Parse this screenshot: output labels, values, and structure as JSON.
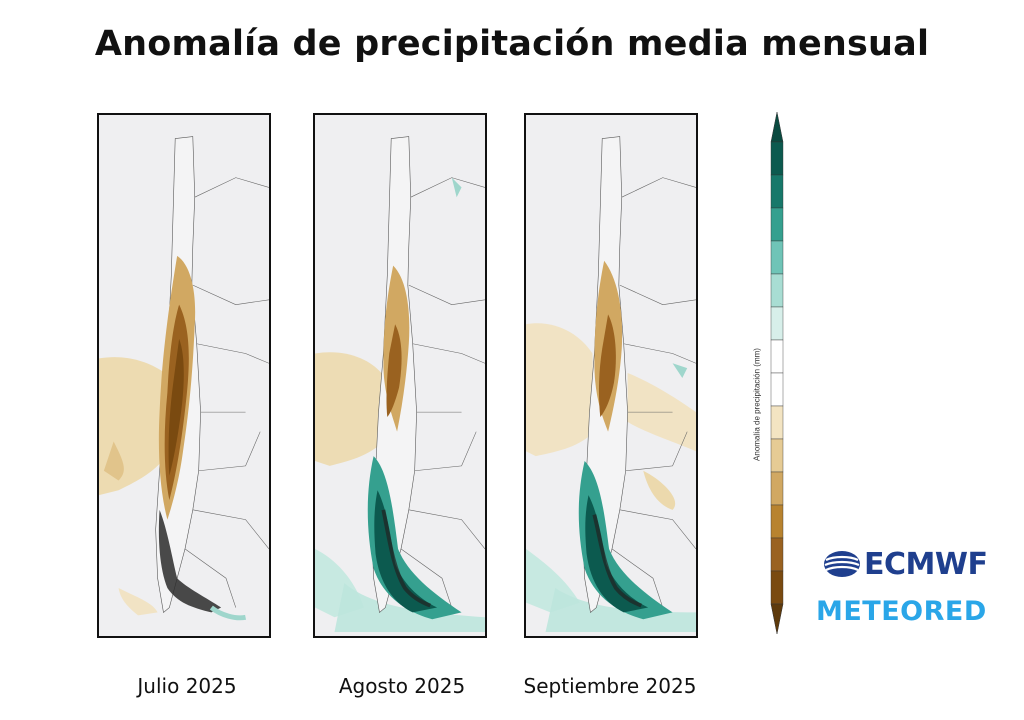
{
  "title": "Anomalía de precipitación media mensual",
  "panels": [
    {
      "label": "Julio 2025",
      "pattern": "dry"
    },
    {
      "label": "Agosto 2025",
      "pattern": "wet_south"
    },
    {
      "label": "Septiembre 2025",
      "pattern": "wet_south"
    }
  ],
  "colorbar": {
    "label": "Anomalía de precipitación (mm)",
    "colors": [
      "#7a4a10",
      "#9a6220",
      "#b8832f",
      "#d1a862",
      "#e6cb94",
      "#f3e4c2",
      "#ffffff",
      "#ffffff",
      "#d7efea",
      "#a8ddd3",
      "#6fc4b7",
      "#35a08f",
      "#17786a",
      "#0c5a4f"
    ]
  },
  "logos": {
    "ecmwf": "ECMWF",
    "meteored": "METEORED"
  },
  "colors": {
    "dry_dark": "#7a4f16",
    "dry_mid": "#b88838",
    "dry_light": "#ecd9ad",
    "wet_dark": "#0c5a4f",
    "wet_mid": "#2e9c88",
    "wet_light": "#bde6dd",
    "land": "#efeff1"
  }
}
